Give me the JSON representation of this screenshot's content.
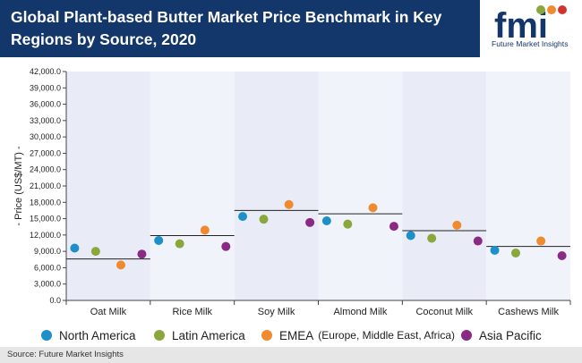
{
  "header": {
    "title_line1": "Global Plant-based Butter Market Price Benchmark in Key",
    "title_line2": "Regions by Source, 2020"
  },
  "logo": {
    "letters": "fmi",
    "tagline": "Future Market Insights"
  },
  "legend": {
    "north_america": "North America",
    "latin_america": "Latin America",
    "emea": "EMEA",
    "emea_detail": "(Europe, Middle East, Africa)",
    "asia_pacific": "Asia Pacific"
  },
  "footer": {
    "source": "Source: Future Market Insights"
  },
  "colors": {
    "north_america": "#1e90c9",
    "latin_america": "#8aa73b",
    "emea": "#ef8a2f",
    "asia_pacific": "#8b2a85",
    "panel_dark": "#e9ecf6",
    "panel_light": "#f0f4fa",
    "banner": "#13366b"
  },
  "chart_data": {
    "type": "scatter",
    "title": "Global Plant-based Butter Market Price Benchmark in Key Regions by Source, 2020",
    "ylabel": "- Price (US$/MT) -",
    "xlabel": "",
    "ylim": [
      0,
      42000
    ],
    "yticks": [
      "0.0",
      "3,000.0",
      "6,000.0",
      "9,000.0",
      "12,000.0",
      "15,000.0",
      "18,000.0",
      "21,000.0",
      "24,000.0",
      "27,000.0",
      "30,000.0",
      "33,000.0",
      "36,000.0",
      "39,000.0",
      "42,000.0"
    ],
    "categories": [
      "Oat Milk",
      "Rice Milk",
      "Soy Milk",
      "Almond Milk",
      "Coconut Milk",
      "Cashews Milk"
    ],
    "series": [
      {
        "name": "North America",
        "values": [
          9600,
          11000,
          15400,
          14600,
          11900,
          9200
        ]
      },
      {
        "name": "Latin America",
        "values": [
          9000,
          10400,
          14900,
          14000,
          11400,
          8700
        ]
      },
      {
        "name": "EMEA",
        "values": [
          6500,
          12900,
          17600,
          17000,
          13800,
          10900
        ]
      },
      {
        "name": "Asia Pacific",
        "values": [
          8500,
          9900,
          14300,
          13600,
          10900,
          8200
        ]
      }
    ],
    "benchmark": [
      7600,
      11900,
      16500,
      15900,
      12800,
      9900
    ],
    "grid": false,
    "legend": "bottom"
  }
}
